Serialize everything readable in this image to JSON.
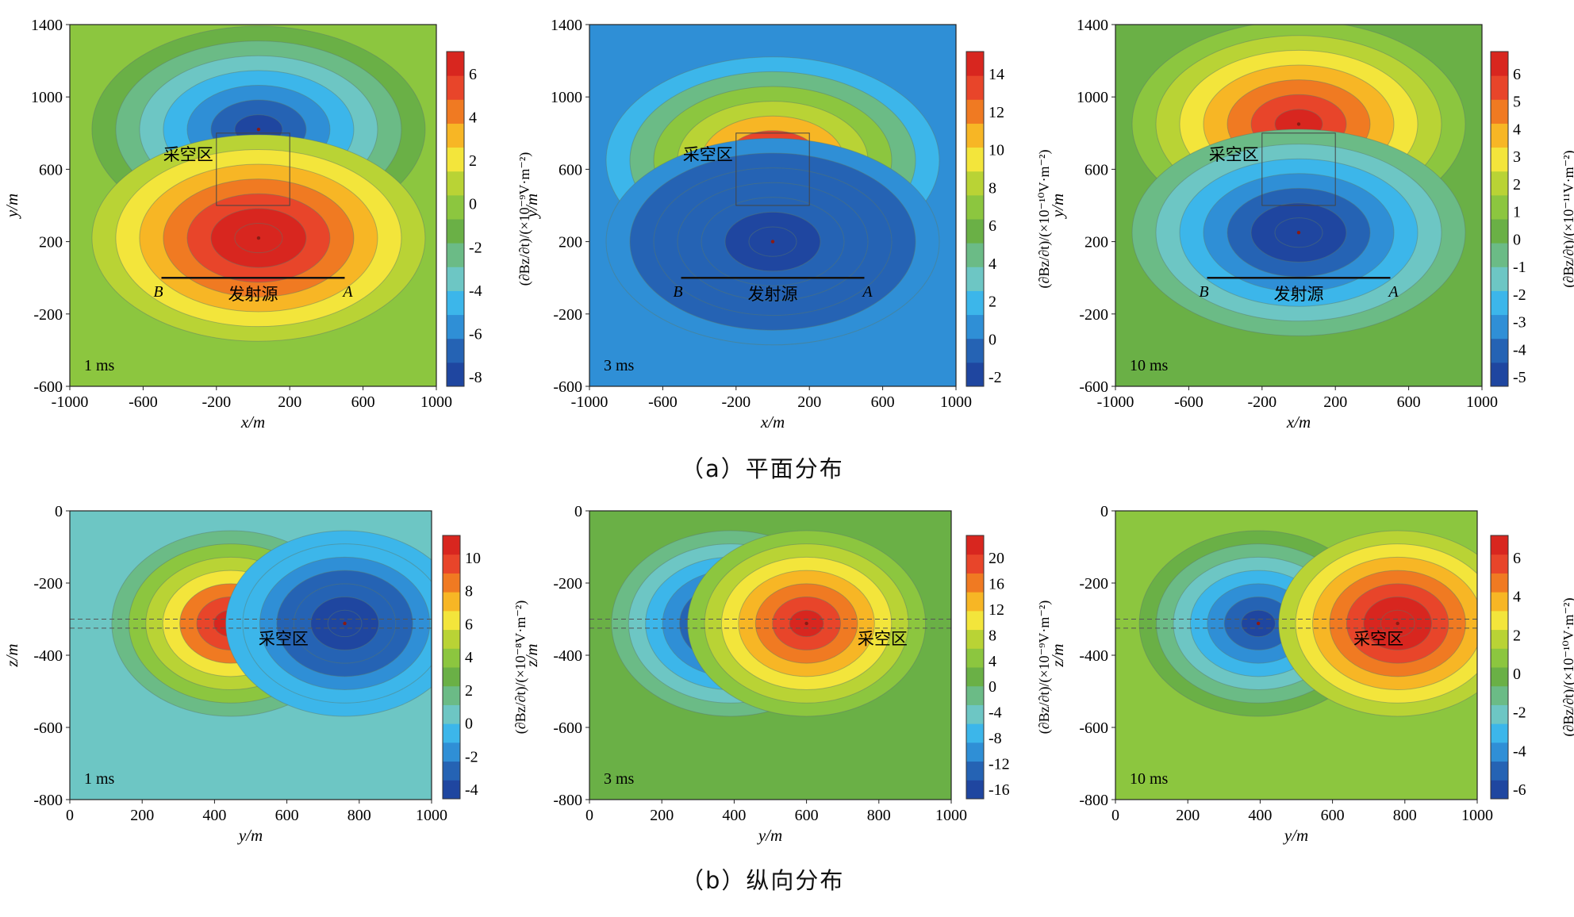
{
  "captions": {
    "plan": "（a）平面分布",
    "section": "（b）纵向分布"
  },
  "palette": [
    "#1f46a0",
    "#2563b4",
    "#2f8fd6",
    "#3cb6ea",
    "#6dc6c4",
    "#6bbb86",
    "#6ab046",
    "#8cc63f",
    "#b9d335",
    "#f3e53b",
    "#f7b625",
    "#f07a22",
    "#e8452a",
    "#d8261f"
  ],
  "chart_data": [
    {
      "type": "heatmap",
      "id": "a1",
      "view": "plan",
      "time_label": "1 ms",
      "xlabel": "x/m",
      "ylabel": "y/m",
      "xlim": [
        -1000,
        1000
      ],
      "ylim": [
        -600,
        1400
      ],
      "xticks": [
        "-1000",
        "-600",
        "-200",
        "200",
        "600",
        "1000"
      ],
      "yticks": [
        "-600",
        "-200",
        "200",
        "600",
        "1000",
        "1400"
      ],
      "colorbar": {
        "label": "(∂Bz/∂t)/(×10⁻⁹V·m⁻²)",
        "ticks": [
          "6",
          "4",
          "2",
          "0",
          "-2",
          "-4",
          "-6",
          "-8"
        ],
        "range": [
          -8,
          7
        ]
      },
      "annotations": {
        "goaf": "采空区",
        "source": "发射源",
        "end_b": "B",
        "end_a": "A"
      },
      "source_line": {
        "x": [
          -500,
          500
        ],
        "y": 0
      },
      "goaf_box": {
        "x": [
          -200,
          200
        ],
        "y": [
          400,
          800
        ]
      },
      "anomalies": [
        {
          "x": 30,
          "y": 820,
          "value": -8
        },
        {
          "x": 30,
          "y": 220,
          "value": 7
        }
      ]
    },
    {
      "type": "heatmap",
      "id": "a2",
      "view": "plan",
      "time_label": "3 ms",
      "xlabel": "x/m",
      "ylabel": "y/m",
      "xlim": [
        -1000,
        1000
      ],
      "ylim": [
        -600,
        1400
      ],
      "xticks": [
        "-1000",
        "-600",
        "-200",
        "200",
        "600",
        "1000"
      ],
      "yticks": [
        "-600",
        "-200",
        "200",
        "600",
        "1000",
        "1400"
      ],
      "colorbar": {
        "label": "(∂Bz/∂t)/(×10⁻¹⁰V·m⁻²)",
        "ticks": [
          "14",
          "12",
          "10",
          "8",
          "6",
          "4",
          "2",
          "0",
          "-2"
        ],
        "range": [
          -3,
          16
        ]
      },
      "annotations": {
        "goaf": "采空区",
        "source": "发射源",
        "end_b": "B",
        "end_a": "A"
      },
      "source_line": {
        "x": [
          -500,
          500
        ],
        "y": 0
      },
      "goaf_box": {
        "x": [
          -200,
          200
        ],
        "y": [
          400,
          800
        ]
      },
      "anomalies": [
        {
          "x": 0,
          "y": 650,
          "value": 16
        },
        {
          "x": 0,
          "y": 200,
          "value": -2
        }
      ]
    },
    {
      "type": "heatmap",
      "id": "a3",
      "view": "plan",
      "time_label": "10 ms",
      "xlabel": "x/m",
      "ylabel": "y/m",
      "xlim": [
        -1000,
        1000
      ],
      "ylim": [
        -600,
        1400
      ],
      "xticks": [
        "-1000",
        "-600",
        "-200",
        "200",
        "600",
        "1000"
      ],
      "yticks": [
        "-600",
        "-200",
        "200",
        "600",
        "1000",
        "1400"
      ],
      "colorbar": {
        "label": "(∂Bz/∂t)/(×10⁻¹¹V·m⁻²)",
        "ticks": [
          "6",
          "5",
          "4",
          "3",
          "2",
          "1",
          "0",
          "-1",
          "-2",
          "-3",
          "-4",
          "-5"
        ],
        "range": [
          -5,
          6.5
        ]
      },
      "annotations": {
        "goaf": "采空区",
        "source": "发射源",
        "end_b": "B",
        "end_a": "A"
      },
      "source_line": {
        "x": [
          -500,
          500
        ],
        "y": 0
      },
      "goaf_box": {
        "x": [
          -200,
          200
        ],
        "y": [
          400,
          800
        ]
      },
      "anomalies": [
        {
          "x": 0,
          "y": 850,
          "value": 6.5
        },
        {
          "x": 0,
          "y": 250,
          "value": -5
        }
      ]
    },
    {
      "type": "heatmap",
      "id": "b1",
      "view": "section",
      "time_label": "1 ms",
      "xlabel": "y/m",
      "ylabel": "z/m",
      "xlim": [
        0,
        1000
      ],
      "ylim": [
        -800,
        0
      ],
      "xticks": [
        "0",
        "200",
        "400",
        "600",
        "800",
        "1000"
      ],
      "yticks": [
        "-800",
        "-600",
        "-400",
        "-200",
        "0"
      ],
      "colorbar": {
        "label": "(∂Bz/∂t)/(×10⁻⁸V·m⁻²)",
        "ticks": [
          "10",
          "8",
          "6",
          "4",
          "2",
          "0",
          "-2",
          "-4"
        ],
        "range": [
          -5,
          11
        ]
      },
      "annotations": {
        "goaf": "采空区"
      },
      "goaf_band": {
        "z": [
          -300,
          -325
        ]
      },
      "anomalies": [
        {
          "x": 445,
          "z": -312,
          "value": 11
        },
        {
          "x": 760,
          "z": -312,
          "value": -5
        }
      ]
    },
    {
      "type": "heatmap",
      "id": "b2",
      "view": "section",
      "time_label": "3 ms",
      "xlabel": "y/m",
      "ylabel": "z/m",
      "xlim": [
        0,
        1000
      ],
      "ylim": [
        -800,
        0
      ],
      "xticks": [
        "0",
        "200",
        "400",
        "600",
        "800",
        "1000"
      ],
      "yticks": [
        "-800",
        "-600",
        "-400",
        "-200",
        "0"
      ],
      "colorbar": {
        "label": "(∂Bz/∂t)/(×10⁻⁹V·m⁻²)",
        "ticks": [
          "20",
          "16",
          "12",
          "8",
          "4",
          "0",
          "-4",
          "-8",
          "-12",
          "-16"
        ],
        "range": [
          -18,
          24
        ]
      },
      "annotations": {
        "goaf": "采空区"
      },
      "goaf_band": {
        "z": [
          -300,
          -325
        ]
      },
      "anomalies": [
        {
          "x": 390,
          "z": -312,
          "value": -18
        },
        {
          "x": 600,
          "z": -312,
          "value": 24
        }
      ]
    },
    {
      "type": "heatmap",
      "id": "b3",
      "view": "section",
      "time_label": "10 ms",
      "xlabel": "y/m",
      "ylabel": "z/m",
      "xlim": [
        0,
        1000
      ],
      "ylim": [
        -800,
        0
      ],
      "xticks": [
        "0",
        "200",
        "400",
        "600",
        "800",
        "1000"
      ],
      "yticks": [
        "-800",
        "-600",
        "-400",
        "-200",
        "0"
      ],
      "colorbar": {
        "label": "(∂Bz/∂t)/(×10⁻¹⁰V·m⁻²)",
        "ticks": [
          "6",
          "4",
          "2",
          "0",
          "-2",
          "-4",
          "-6"
        ],
        "range": [
          -7,
          7
        ]
      },
      "annotations": {
        "goaf": "采空区"
      },
      "goaf_band": {
        "z": [
          -300,
          -325
        ]
      },
      "anomalies": [
        {
          "x": 395,
          "z": -312,
          "value": -7
        },
        {
          "x": 780,
          "z": -312,
          "value": 7
        }
      ]
    }
  ]
}
